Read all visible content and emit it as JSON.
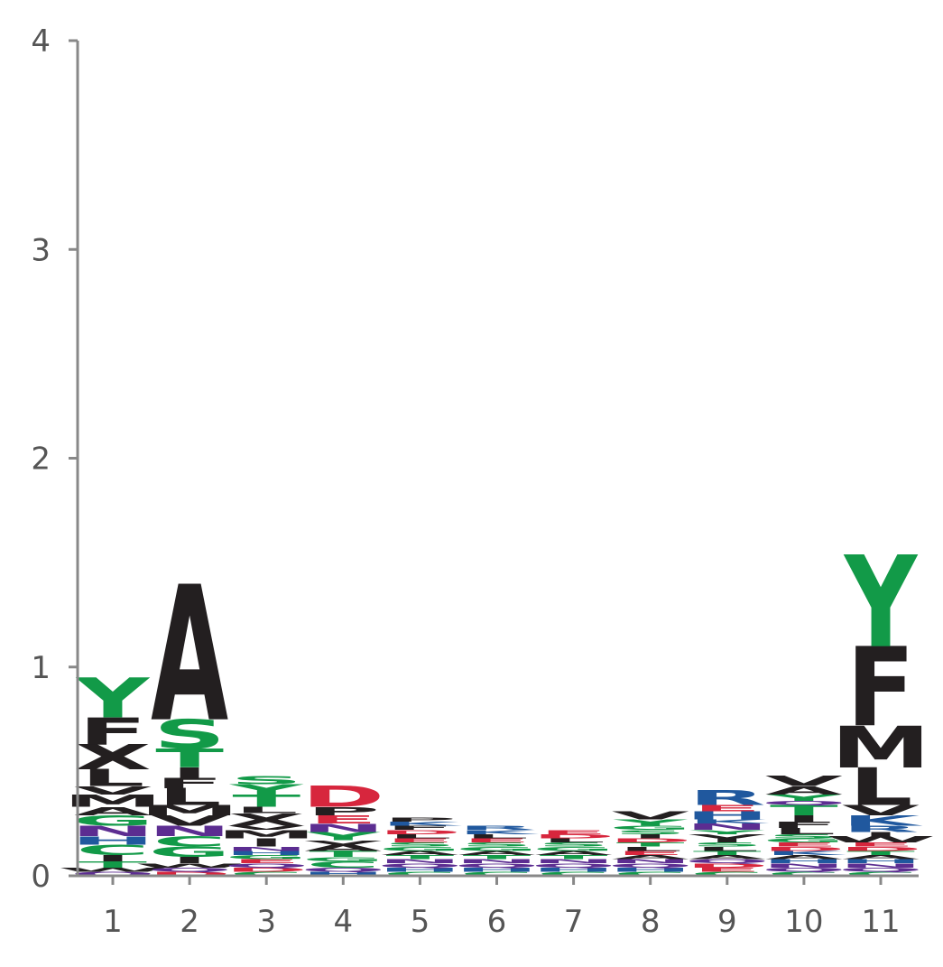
{
  "chart_data": {
    "type": "sequence-logo",
    "title": "",
    "xlabel": "",
    "ylabel": "",
    "ylim": [
      0,
      4
    ],
    "yticks": [
      "0",
      "1",
      "2",
      "3",
      "4"
    ],
    "positions": [
      "1",
      "2",
      "3",
      "4",
      "5",
      "6",
      "7",
      "8",
      "9",
      "10",
      "11"
    ],
    "colors": {
      "polar": "#129a48",
      "hydrophobic": "#231f20",
      "acidic": "#d7263d",
      "basic": "#20589e",
      "amide": "#5c2d91"
    },
    "residue_class": {
      "A": "hydrophobic",
      "C": "polar",
      "D": "acidic",
      "E": "acidic",
      "F": "hydrophobic",
      "G": "polar",
      "H": "basic",
      "I": "hydrophobic",
      "K": "basic",
      "L": "hydrophobic",
      "M": "hydrophobic",
      "N": "amide",
      "P": "hydrophobic",
      "Q": "amide",
      "R": "basic",
      "S": "polar",
      "T": "polar",
      "V": "hydrophobic",
      "W": "hydrophobic",
      "Y": "polar"
    },
    "stacks": [
      {
        "position": "1",
        "letters": [
          [
            "Q",
            0.02
          ],
          [
            "W",
            0.02
          ],
          [
            "T",
            0.03
          ],
          [
            "I",
            0.03
          ],
          [
            "C",
            0.05
          ],
          [
            "H",
            0.04
          ],
          [
            "N",
            0.05
          ],
          [
            "G",
            0.05
          ],
          [
            "A",
            0.04
          ],
          [
            "M",
            0.06
          ],
          [
            "V",
            0.04
          ],
          [
            "L",
            0.08
          ],
          [
            "X",
            0.12
          ],
          [
            "F",
            0.13
          ],
          [
            "Y",
            0.19
          ]
        ]
      },
      {
        "position": "2",
        "letters": [
          [
            "D",
            0.02
          ],
          [
            "Q",
            0.02
          ],
          [
            "W",
            0.02
          ],
          [
            "I",
            0.03
          ],
          [
            "G",
            0.05
          ],
          [
            "C",
            0.05
          ],
          [
            "N",
            0.05
          ],
          [
            "V",
            0.05
          ],
          [
            "M",
            0.05
          ],
          [
            "L",
            0.08
          ],
          [
            "F",
            0.05
          ],
          [
            "I",
            0.05
          ],
          [
            "T",
            0.09
          ],
          [
            "S",
            0.14
          ],
          [
            "A",
            0.65
          ]
        ]
      },
      {
        "position": "3",
        "letters": [
          [
            "C",
            0.02
          ],
          [
            "D",
            0.02
          ],
          [
            "Q",
            0.02
          ],
          [
            "E",
            0.02
          ],
          [
            "G",
            0.02
          ],
          [
            "H",
            0.02
          ],
          [
            "N",
            0.02
          ],
          [
            "I",
            0.04
          ],
          [
            "M",
            0.04
          ],
          [
            "V",
            0.02
          ],
          [
            "X",
            0.06
          ],
          [
            "L",
            0.03
          ],
          [
            "T",
            0.06
          ],
          [
            "Y",
            0.05
          ],
          [
            "S",
            0.04
          ]
        ]
      },
      {
        "position": "4",
        "letters": [
          [
            "H",
            0.02
          ],
          [
            "Q",
            0.02
          ],
          [
            "C",
            0.03
          ],
          [
            "G",
            0.02
          ],
          [
            "T",
            0.03
          ],
          [
            "A",
            0.03
          ],
          [
            "V",
            0.02
          ],
          [
            "Y",
            0.04
          ],
          [
            "N",
            0.04
          ],
          [
            "E",
            0.04
          ],
          [
            "P",
            0.04
          ],
          [
            "D",
            0.1
          ]
        ]
      },
      {
        "position": "5",
        "letters": [
          [
            "C",
            0.02
          ],
          [
            "H",
            0.02
          ],
          [
            "Q",
            0.02
          ],
          [
            "N",
            0.02
          ],
          [
            "T",
            0.02
          ],
          [
            "A",
            0.02
          ],
          [
            "G",
            0.02
          ],
          [
            "S",
            0.02
          ],
          [
            "E",
            0.02
          ],
          [
            "L",
            0.02
          ],
          [
            "D",
            0.02
          ],
          [
            "F",
            0.02
          ],
          [
            "K",
            0.02
          ],
          [
            "P",
            0.02
          ]
        ]
      },
      {
        "position": "6",
        "letters": [
          [
            "C",
            0.02
          ],
          [
            "H",
            0.02
          ],
          [
            "Q",
            0.02
          ],
          [
            "N",
            0.02
          ],
          [
            "T",
            0.02
          ],
          [
            "A",
            0.02
          ],
          [
            "G",
            0.02
          ],
          [
            "S",
            0.02
          ],
          [
            "E",
            0.02
          ],
          [
            "L",
            0.02
          ],
          [
            "K",
            0.02
          ],
          [
            "R",
            0.02
          ]
        ]
      },
      {
        "position": "7",
        "letters": [
          [
            "C",
            0.02
          ],
          [
            "H",
            0.02
          ],
          [
            "Q",
            0.02
          ],
          [
            "N",
            0.02
          ],
          [
            "T",
            0.02
          ],
          [
            "A",
            0.02
          ],
          [
            "G",
            0.02
          ],
          [
            "S",
            0.02
          ],
          [
            "L",
            0.02
          ],
          [
            "D",
            0.02
          ],
          [
            "E",
            0.02
          ]
        ]
      },
      {
        "position": "8",
        "letters": [
          [
            "C",
            0.02
          ],
          [
            "H",
            0.02
          ],
          [
            "Q",
            0.02
          ],
          [
            "N",
            0.02
          ],
          [
            "A",
            0.02
          ],
          [
            "E",
            0.02
          ],
          [
            "L",
            0.02
          ],
          [
            "T",
            0.02
          ],
          [
            "D",
            0.02
          ],
          [
            "I",
            0.02
          ],
          [
            "S",
            0.02
          ],
          [
            "G",
            0.02
          ],
          [
            "Y",
            0.03
          ],
          [
            "V",
            0.04
          ]
        ]
      },
      {
        "position": "9",
        "letters": [
          [
            "C",
            0.02
          ],
          [
            "E",
            0.02
          ],
          [
            "D",
            0.02
          ],
          [
            "Q",
            0.02
          ],
          [
            "A",
            0.02
          ],
          [
            "T",
            0.02
          ],
          [
            "L",
            0.02
          ],
          [
            "S",
            0.02
          ],
          [
            "I",
            0.02
          ],
          [
            "V",
            0.02
          ],
          [
            "Y",
            0.02
          ],
          [
            "N",
            0.03
          ],
          [
            "K",
            0.02
          ],
          [
            "H",
            0.04
          ],
          [
            "E",
            0.03
          ],
          [
            "R",
            0.07
          ]
        ]
      },
      {
        "position": "10",
        "letters": [
          [
            "C",
            0.02
          ],
          [
            "Q",
            0.02
          ],
          [
            "N",
            0.02
          ],
          [
            "H",
            0.02
          ],
          [
            "A",
            0.02
          ],
          [
            "K",
            0.02
          ],
          [
            "D",
            0.02
          ],
          [
            "E",
            0.02
          ],
          [
            "G",
            0.02
          ],
          [
            "S",
            0.02
          ],
          [
            "L",
            0.03
          ],
          [
            "F",
            0.03
          ],
          [
            "I",
            0.03
          ],
          [
            "T",
            0.05
          ],
          [
            "Q",
            0.02
          ],
          [
            "Y",
            0.03
          ],
          [
            "A",
            0.04
          ],
          [
            "V",
            0.05
          ]
        ]
      },
      {
        "position": "11",
        "letters": [
          [
            "C",
            0.02
          ],
          [
            "Q",
            0.02
          ],
          [
            "N",
            0.02
          ],
          [
            "H",
            0.02
          ],
          [
            "A",
            0.02
          ],
          [
            "T",
            0.02
          ],
          [
            "D",
            0.02
          ],
          [
            "E",
            0.02
          ],
          [
            "W",
            0.03
          ],
          [
            "I",
            0.02
          ],
          [
            "R",
            0.03
          ],
          [
            "K",
            0.05
          ],
          [
            "V",
            0.05
          ],
          [
            "L",
            0.18
          ],
          [
            "M",
            0.2
          ],
          [
            "F",
            0.38
          ],
          [
            "Y",
            0.44
          ]
        ]
      }
    ]
  }
}
